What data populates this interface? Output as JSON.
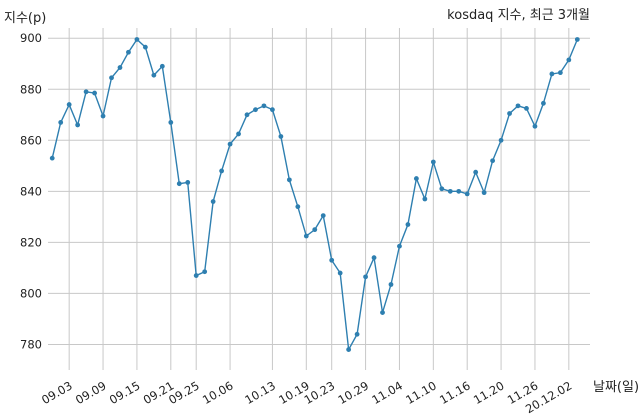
{
  "chart_data": {
    "type": "line",
    "title": "kosdaq 지수, 최근 3개월",
    "xlabel": "날짜(일)",
    "ylabel": "지수(p)",
    "ylim": [
      770,
      904
    ],
    "yticks": [
      780,
      800,
      820,
      840,
      860,
      880,
      900
    ],
    "grid": true,
    "xticks": [
      "09.03",
      "09.09",
      "09.15",
      "09.21",
      "09.25",
      "10.06",
      "10.13",
      "10.19",
      "10.23",
      "10.29",
      "11.04",
      "11.10",
      "11.16",
      "11.20",
      "11.26",
      "20.12.02"
    ],
    "xtick_index": [
      2,
      6,
      10,
      14,
      17,
      21,
      26,
      30,
      33,
      37,
      41,
      45,
      49,
      53,
      57,
      61
    ],
    "x_index_range": [
      -0.5,
      63.5
    ],
    "color": "#2e7fb0",
    "values": [
      853.0,
      867.0,
      874.0,
      866.0,
      879.0,
      878.5,
      869.5,
      884.5,
      888.5,
      894.5,
      899.5,
      896.5,
      885.5,
      889.0,
      867.0,
      843.0,
      843.5,
      807.0,
      808.5,
      836.0,
      848.0,
      858.5,
      862.5,
      870.0,
      872.0,
      873.5,
      872.0,
      861.5,
      844.5,
      834.0,
      822.5,
      825.0,
      830.5,
      813.0,
      808.0,
      778.0,
      784.0,
      806.5,
      814.0,
      792.5,
      803.5,
      818.5,
      827.0,
      845.0,
      837.0,
      851.5,
      841.0,
      840.0,
      840.0,
      839.0,
      847.5,
      839.5,
      852.0,
      860.0,
      870.5,
      873.5,
      872.5,
      865.5,
      874.5,
      886.0,
      886.5,
      891.5,
      899.5
    ]
  }
}
